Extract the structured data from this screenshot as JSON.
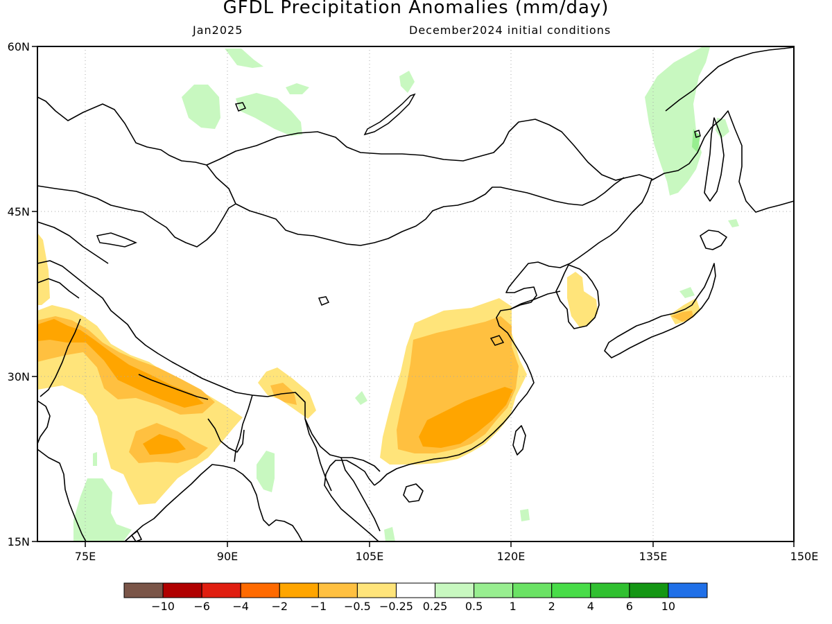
{
  "header": {
    "title": "GFDL Precipitation Anomalies (mm/day)",
    "valid": "Jan2025",
    "init": "December2024 initial conditions"
  },
  "map": {
    "lat_labels": [
      "60N",
      "45N",
      "30N",
      "15N"
    ],
    "lon_labels": [
      "75E",
      "90E",
      "105E",
      "120E",
      "135E",
      "150E"
    ],
    "extent": {
      "lon": [
        70,
        150
      ],
      "lat": [
        15,
        60
      ]
    }
  },
  "colorbar": {
    "colors": [
      "#7a5548",
      "#b00000",
      "#e01e10",
      "#ff6a00",
      "#ffa500",
      "#ffc040",
      "#ffe47a",
      "#ffffff",
      "#c8f8c0",
      "#98ee90",
      "#6ae264",
      "#48dc48",
      "#30c030",
      "#149614",
      "#2070e8"
    ],
    "labels": [
      "−10",
      "−6",
      "−4",
      "−2",
      "−1",
      "−0.5",
      "−0.25",
      "0.25",
      "0.5",
      "1",
      "2",
      "4",
      "6",
      "10"
    ]
  }
}
